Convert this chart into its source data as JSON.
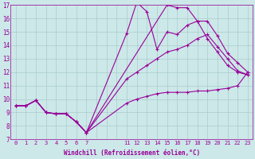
{
  "bg_color": "#cce8e8",
  "line_color": "#990099",
  "grid_color": "#aacccc",
  "xlabel": "Windchill (Refroidissement éolien,°C)",
  "xlim": [
    -0.5,
    23.5
  ],
  "ylim": [
    7,
    17
  ],
  "xtick_positions": [
    0,
    1,
    2,
    3,
    4,
    5,
    6,
    7,
    11,
    12,
    13,
    14,
    15,
    16,
    17,
    18,
    19,
    20,
    21,
    22,
    23
  ],
  "xtick_labels": [
    "0",
    "1",
    "2",
    "3",
    "4",
    "5",
    "6",
    "7",
    "11",
    "12",
    "13",
    "14",
    "15",
    "16",
    "17",
    "18",
    "19",
    "20",
    "21",
    "22",
    "23"
  ],
  "yticks": [
    7,
    8,
    9,
    10,
    11,
    12,
    13,
    14,
    15,
    16,
    17
  ],
  "grid_xticks": [
    0,
    1,
    2,
    3,
    4,
    5,
    6,
    7,
    8,
    9,
    10,
    11,
    12,
    13,
    14,
    15,
    16,
    17,
    18,
    19,
    20,
    21,
    22,
    23
  ],
  "lines": [
    {
      "x": [
        0,
        1,
        2,
        3,
        4,
        5,
        6,
        7,
        15,
        16,
        17,
        18,
        19,
        20,
        21,
        22,
        23
      ],
      "y": [
        9.5,
        9.5,
        9.9,
        9.0,
        8.9,
        8.9,
        8.3,
        7.5,
        17.0,
        16.8,
        16.8,
        15.8,
        15.8,
        14.7,
        13.4,
        12.7,
        12.0
      ]
    },
    {
      "x": [
        0,
        1,
        2,
        3,
        4,
        5,
        6,
        7,
        11,
        12,
        13,
        14,
        15,
        16,
        17,
        18,
        19,
        20,
        21,
        22,
        23
      ],
      "y": [
        9.5,
        9.5,
        9.9,
        9.0,
        8.9,
        8.9,
        8.3,
        7.5,
        14.9,
        17.2,
        16.5,
        13.7,
        15.0,
        14.8,
        15.5,
        15.8,
        14.5,
        13.5,
        12.5,
        12.0,
        11.8
      ]
    },
    {
      "x": [
        0,
        1,
        2,
        3,
        4,
        5,
        6,
        7,
        11,
        12,
        13,
        14,
        15,
        16,
        17,
        18,
        19,
        20,
        21,
        22,
        23
      ],
      "y": [
        9.5,
        9.5,
        9.9,
        9.0,
        8.9,
        8.9,
        8.3,
        7.5,
        11.5,
        12.0,
        12.5,
        13.0,
        13.5,
        13.7,
        14.0,
        14.5,
        14.8,
        13.9,
        13.0,
        12.1,
        11.8
      ]
    },
    {
      "x": [
        0,
        1,
        2,
        3,
        4,
        5,
        6,
        7,
        11,
        12,
        13,
        14,
        15,
        16,
        17,
        18,
        19,
        20,
        21,
        22,
        23
      ],
      "y": [
        9.5,
        9.5,
        9.9,
        9.0,
        8.9,
        8.9,
        8.3,
        7.5,
        9.7,
        10.0,
        10.2,
        10.4,
        10.5,
        10.5,
        10.5,
        10.6,
        10.6,
        10.7,
        10.8,
        11.0,
        12.0
      ]
    }
  ]
}
